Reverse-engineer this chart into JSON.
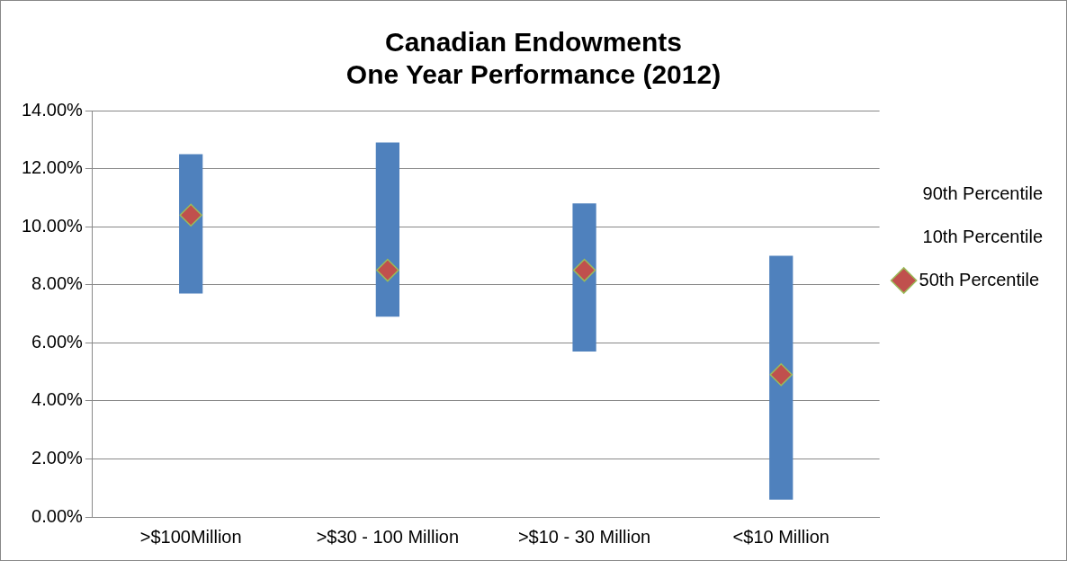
{
  "chart_data": {
    "type": "bar",
    "title": [
      "Canadian Endowments",
      "One Year Performance (2012)"
    ],
    "categories": [
      ">$100Million",
      ">$30 - 100 Million",
      ">$10 - 30 Million",
      "<$10 Million"
    ],
    "series": [
      {
        "color": "#4f81bd",
        "base": [
          7.7,
          6.9,
          5.7,
          0.6
        ],
        "values": [
          4.8,
          6.0,
          5.1,
          8.4
        ]
      },
      {
        "name": "50th Percentile",
        "type": "scatter",
        "marker": "diamond",
        "color": "#c0504d",
        "x": [
          ">$100Million",
          ">$30 - 100 Million",
          ">$10 - 30 Million",
          "<$10 Million"
        ],
        "values": [
          10.4,
          8.5,
          8.5,
          4.9
        ]
      }
    ],
    "ylim": [
      0,
      14
    ],
    "yticks": [
      {
        "value": 0,
        "label": "0.00%"
      },
      {
        "value": 2,
        "label": "2.00%"
      },
      {
        "value": 4,
        "label": "4.00%"
      },
      {
        "value": 6,
        "label": "6.00%"
      },
      {
        "value": 8,
        "label": "8.00%"
      },
      {
        "value": 10,
        "label": "10.00%"
      },
      {
        "value": 12,
        "label": "12.00%"
      },
      {
        "value": 14,
        "label": "14.00%"
      }
    ],
    "grid": "y",
    "legend": "right",
    "annotations": [
      "90th Percentile",
      "10th Percentile"
    ]
  }
}
